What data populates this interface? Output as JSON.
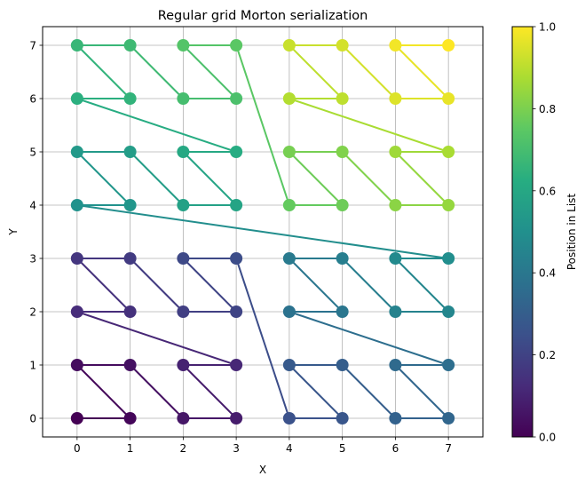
{
  "chart_data": {
    "type": "line",
    "title": "Regular grid Morton serialization",
    "xlabel": "X",
    "ylabel": "Y",
    "xlim": [
      -0.65,
      7.65
    ],
    "ylim": [
      -0.35,
      7.35
    ],
    "xticks": [
      "0",
      "1",
      "2",
      "3",
      "4",
      "5",
      "6",
      "7"
    ],
    "yticks": [
      "0",
      "1",
      "2",
      "3",
      "4",
      "5",
      "6",
      "7"
    ],
    "grid": true,
    "colorbar": {
      "label": "Position in List",
      "colormap": "viridis",
      "range": [
        0.0,
        1.0
      ],
      "ticks": [
        "0.0",
        "0.2",
        "0.4",
        "0.6",
        "0.8",
        "1.0"
      ]
    },
    "series": [
      {
        "x": [
          0,
          1,
          0,
          1,
          2,
          3,
          2,
          3,
          0,
          1,
          0,
          1,
          2,
          3,
          2,
          3,
          4,
          5,
          4,
          5,
          6,
          7,
          6,
          7,
          4,
          5,
          4,
          5,
          6,
          7,
          6,
          7,
          0,
          1,
          0,
          1,
          2,
          3,
          2,
          3,
          0,
          1,
          0,
          1,
          2,
          3,
          2,
          3,
          4,
          5,
          4,
          5,
          6,
          7,
          6,
          7,
          4,
          5,
          4,
          5,
          6,
          7,
          6,
          7
        ],
        "y": [
          0,
          0,
          1,
          1,
          0,
          0,
          1,
          1,
          2,
          2,
          3,
          3,
          2,
          2,
          3,
          3,
          0,
          0,
          1,
          1,
          0,
          0,
          1,
          1,
          2,
          2,
          3,
          3,
          2,
          2,
          3,
          3,
          4,
          4,
          5,
          5,
          4,
          4,
          5,
          5,
          6,
          6,
          7,
          7,
          6,
          6,
          7,
          7,
          4,
          4,
          5,
          5,
          4,
          4,
          5,
          5,
          6,
          6,
          7,
          7,
          6,
          6,
          7,
          7
        ]
      }
    ]
  }
}
